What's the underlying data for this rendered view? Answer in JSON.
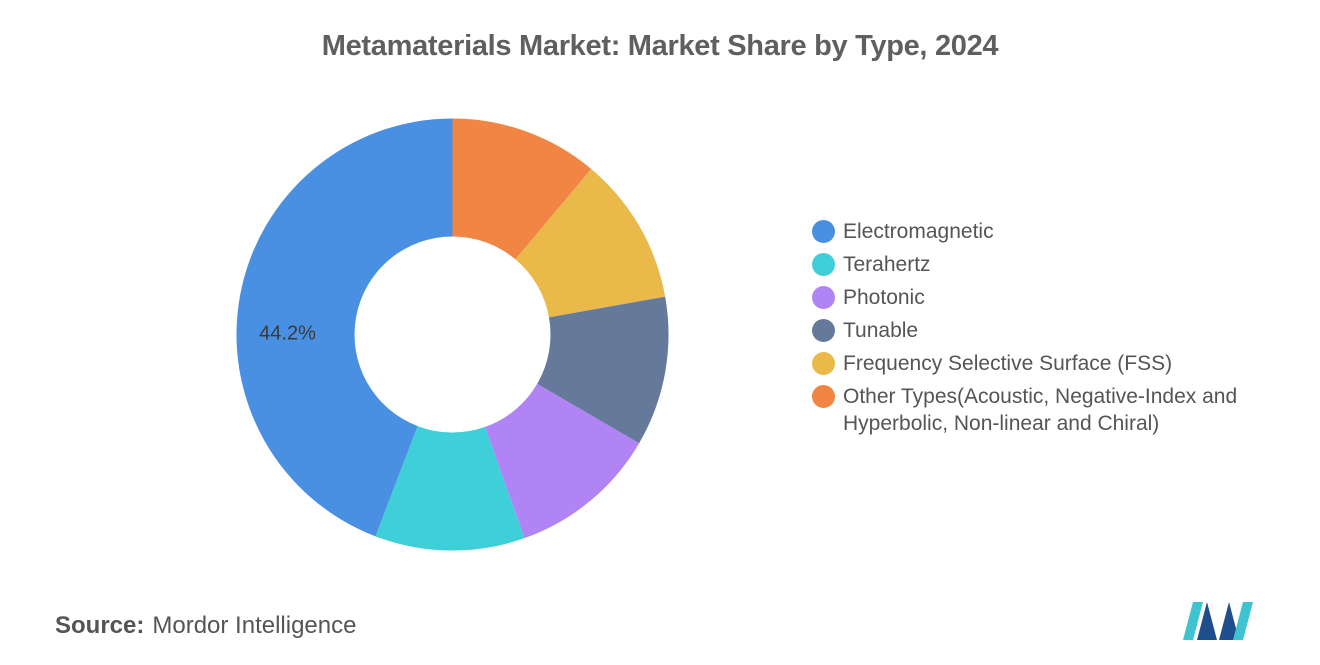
{
  "chart_data": {
    "type": "pie",
    "title": "Metamaterials Market: Market Share by Type, 2024",
    "donut": true,
    "categories": [
      "Electromagnetic",
      "Terahertz",
      "Photonic",
      "Tunable",
      "Frequency Selective Surface (FSS)",
      "Other Types(Acoustic, Negative-Index and Hyperbolic, Non-linear and Chiral)"
    ],
    "values": [
      44.2,
      11.2,
      11.2,
      11.2,
      11.1,
      11.1
    ],
    "colors": [
      "#4a90e2",
      "#3ecfd9",
      "#b084f5",
      "#65799b",
      "#ebb84a",
      "#f08544"
    ],
    "data_labels": [
      {
        "index": 0,
        "text": "44.2%"
      }
    ],
    "legend_position": "right"
  },
  "footer": {
    "source_label": "Source:",
    "source_value": "Mordor Intelligence"
  },
  "logo": {
    "icon": "mordor-intelligence-logo-icon",
    "colors": [
      "#1f4e8c",
      "#3ec3d0"
    ]
  }
}
